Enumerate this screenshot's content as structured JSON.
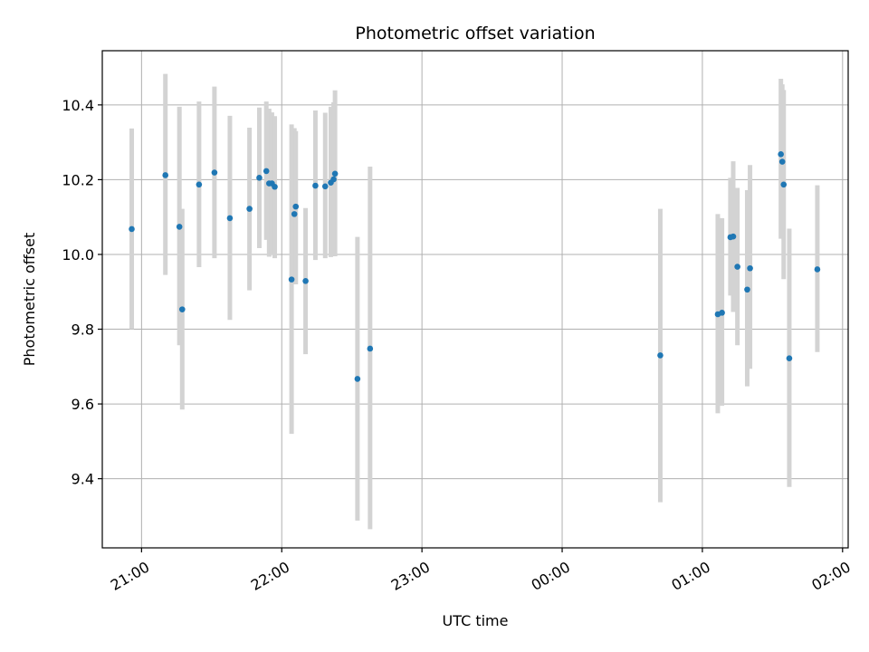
{
  "chart_data": {
    "type": "scatter",
    "title": "Photometric offset variation",
    "xlabel": "UTC time",
    "ylabel": "Photometric offset",
    "x_unit": "UTC hours, times after midnight written as hour + 24",
    "xlim": [
      20.72,
      26.04
    ],
    "ylim": [
      9.215,
      10.545
    ],
    "x_ticks": [
      {
        "value": 21,
        "label": "21:00"
      },
      {
        "value": 22,
        "label": "22:00"
      },
      {
        "value": 23,
        "label": "23:00"
      },
      {
        "value": 24,
        "label": "00:00"
      },
      {
        "value": 25,
        "label": "01:00"
      },
      {
        "value": 26,
        "label": "02:00"
      }
    ],
    "y_ticks": [
      {
        "value": 9.4,
        "label": "9.4"
      },
      {
        "value": 9.6,
        "label": "9.6"
      },
      {
        "value": 9.8,
        "label": "9.8"
      },
      {
        "value": 10.0,
        "label": "10.0"
      },
      {
        "value": 10.2,
        "label": "10.2"
      },
      {
        "value": 10.4,
        "label": "10.4"
      }
    ],
    "grid": true,
    "colors": {
      "point": "#1f77b4",
      "error_bar": "#d3d3d3",
      "grid": "#b0b0b0"
    },
    "points": [
      {
        "x": 20.93,
        "y": 10.068,
        "lo": 9.8,
        "hi": 10.337
      },
      {
        "x": 21.17,
        "y": 10.212,
        "lo": 9.945,
        "hi": 10.483
      },
      {
        "x": 21.27,
        "y": 10.074,
        "lo": 9.757,
        "hi": 10.395
      },
      {
        "x": 21.29,
        "y": 9.853,
        "lo": 9.585,
        "hi": 10.122
      },
      {
        "x": 21.41,
        "y": 10.187,
        "lo": 9.966,
        "hi": 10.409
      },
      {
        "x": 21.52,
        "y": 10.219,
        "lo": 9.99,
        "hi": 10.449
      },
      {
        "x": 21.63,
        "y": 10.097,
        "lo": 9.825,
        "hi": 10.371
      },
      {
        "x": 21.77,
        "y": 10.122,
        "lo": 9.904,
        "hi": 10.339
      },
      {
        "x": 21.84,
        "y": 10.205,
        "lo": 10.017,
        "hi": 10.393
      },
      {
        "x": 21.89,
        "y": 10.223,
        "lo": 10.039,
        "hi": 10.409
      },
      {
        "x": 21.91,
        "y": 10.19,
        "lo": 9.994,
        "hi": 10.39
      },
      {
        "x": 21.93,
        "y": 10.19,
        "lo": 9.998,
        "hi": 10.38
      },
      {
        "x": 21.95,
        "y": 10.181,
        "lo": 9.99,
        "hi": 10.37
      },
      {
        "x": 22.07,
        "y": 9.933,
        "lo": 9.52,
        "hi": 10.348
      },
      {
        "x": 22.09,
        "y": 10.108,
        "lo": 9.925,
        "hi": 10.338
      },
      {
        "x": 22.1,
        "y": 10.128,
        "lo": 9.92,
        "hi": 10.33
      },
      {
        "x": 22.17,
        "y": 9.929,
        "lo": 9.733,
        "hi": 10.124
      },
      {
        "x": 22.24,
        "y": 10.184,
        "lo": 9.985,
        "hi": 10.385
      },
      {
        "x": 22.31,
        "y": 10.182,
        "lo": 9.99,
        "hi": 10.379
      },
      {
        "x": 22.35,
        "y": 10.192,
        "lo": 9.993,
        "hi": 10.395
      },
      {
        "x": 22.37,
        "y": 10.201,
        "lo": 9.996,
        "hi": 10.407
      },
      {
        "x": 22.38,
        "y": 10.216,
        "lo": 9.995,
        "hi": 10.439
      },
      {
        "x": 22.54,
        "y": 9.667,
        "lo": 9.288,
        "hi": 10.047
      },
      {
        "x": 22.63,
        "y": 9.748,
        "lo": 9.265,
        "hi": 10.235
      },
      {
        "x": 24.7,
        "y": 9.73,
        "lo": 9.337,
        "hi": 10.122
      },
      {
        "x": 25.11,
        "y": 9.84,
        "lo": 9.575,
        "hi": 10.108
      },
      {
        "x": 25.14,
        "y": 9.844,
        "lo": 9.595,
        "hi": 10.097
      },
      {
        "x": 25.2,
        "y": 10.046,
        "lo": 9.89,
        "hi": 10.205
      },
      {
        "x": 25.22,
        "y": 10.048,
        "lo": 9.846,
        "hi": 10.249
      },
      {
        "x": 25.25,
        "y": 9.967,
        "lo": 9.757,
        "hi": 10.178
      },
      {
        "x": 25.32,
        "y": 9.906,
        "lo": 9.647,
        "hi": 10.172
      },
      {
        "x": 25.34,
        "y": 9.963,
        "lo": 9.694,
        "hi": 10.239
      },
      {
        "x": 25.56,
        "y": 10.268,
        "lo": 10.042,
        "hi": 10.47
      },
      {
        "x": 25.57,
        "y": 10.248,
        "lo": 10.052,
        "hi": 10.455
      },
      {
        "x": 25.58,
        "y": 10.187,
        "lo": 9.934,
        "hi": 10.44
      },
      {
        "x": 25.62,
        "y": 9.722,
        "lo": 9.378,
        "hi": 10.069
      },
      {
        "x": 25.82,
        "y": 9.96,
        "lo": 9.739,
        "hi": 10.185
      }
    ]
  }
}
